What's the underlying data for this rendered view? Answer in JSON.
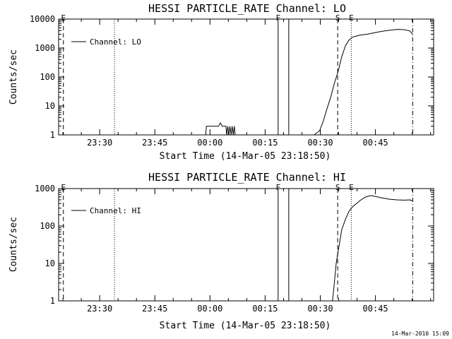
{
  "footer": {
    "timestamp": "14-Mar-2010 15:09"
  },
  "chart_data": [
    {
      "type": "line",
      "title": "HESSI PARTICLE_RATE Channel: LO",
      "xlabel": "Start Time (14-Mar-05 23:18:50)",
      "ylabel": "Counts/sec",
      "x_unit": "minutes since 14-Mar-05 23:18:50",
      "xlim": [
        0,
        102
      ],
      "ylim": [
        1,
        10000
      ],
      "yscale": "log",
      "x_ticks": [
        {
          "x": 11.17,
          "label": "23:30"
        },
        {
          "x": 26.17,
          "label": "23:45"
        },
        {
          "x": 41.17,
          "label": "00:00"
        },
        {
          "x": 56.17,
          "label": "00:15"
        },
        {
          "x": 71.17,
          "label": "00:30"
        },
        {
          "x": 86.17,
          "label": "00:45"
        }
      ],
      "y_ticks": [
        {
          "y": 1,
          "label": "1"
        },
        {
          "y": 10,
          "label": "10"
        },
        {
          "y": 100,
          "label": "100"
        },
        {
          "y": 1000,
          "label": "1000"
        },
        {
          "y": 10000,
          "label": "10000"
        }
      ],
      "legend": {
        "label": "Channel: LO",
        "position": "top-left"
      },
      "markers": [
        {
          "x": 1.3,
          "style": "dashed",
          "label": "E"
        },
        {
          "x": 15.2,
          "style": "dotted",
          "label": ""
        },
        {
          "x": 59.7,
          "style": "solid",
          "label": "F"
        },
        {
          "x": 62.6,
          "style": "solid",
          "label": ""
        },
        {
          "x": 75.9,
          "style": "dashed",
          "label": "S"
        },
        {
          "x": 79.6,
          "style": "dotted",
          "label": "E"
        },
        {
          "x": 96.3,
          "style": "dashdot",
          "label": ""
        }
      ],
      "series": [
        {
          "name": "Channel: LO",
          "segments": [
            [
              [
                40.0,
                1
              ],
              [
                40.2,
                2
              ],
              [
                43.5,
                2
              ],
              [
                44.0,
                2.6
              ],
              [
                44.5,
                2
              ],
              [
                45.5,
                2
              ],
              [
                45.7,
                1
              ],
              [
                46.0,
                2
              ],
              [
                46.3,
                1
              ],
              [
                46.6,
                2
              ],
              [
                46.9,
                1
              ],
              [
                47.2,
                2
              ],
              [
                47.5,
                1
              ],
              [
                47.8,
                2
              ],
              [
                48.0,
                1
              ]
            ],
            [
              [
                69.5,
                1
              ],
              [
                71.0,
                1.4
              ],
              [
                72.0,
                3
              ],
              [
                73.0,
                8
              ],
              [
                74.0,
                20
              ],
              [
                75.0,
                60
              ],
              [
                76.0,
                150
              ],
              [
                77.0,
                500
              ],
              [
                78.0,
                1200
              ],
              [
                79.0,
                1900
              ],
              [
                80.0,
                2400
              ],
              [
                82.0,
                2800
              ],
              [
                84.0,
                3000
              ],
              [
                86.0,
                3400
              ],
              [
                88.0,
                3800
              ],
              [
                90.0,
                4100
              ],
              [
                92.0,
                4400
              ],
              [
                94.0,
                4300
              ],
              [
                95.5,
                3900
              ],
              [
                96.3,
                3000
              ]
            ]
          ]
        }
      ]
    },
    {
      "type": "line",
      "title": "HESSI PARTICLE_RATE Channel: HI",
      "xlabel": "Start Time (14-Mar-05 23:18:50)",
      "ylabel": "Counts/sec",
      "x_unit": "minutes since 14-Mar-05 23:18:50",
      "xlim": [
        0,
        102
      ],
      "ylim": [
        1,
        1000
      ],
      "yscale": "log",
      "x_ticks": [
        {
          "x": 11.17,
          "label": "23:30"
        },
        {
          "x": 26.17,
          "label": "23:45"
        },
        {
          "x": 41.17,
          "label": "00:00"
        },
        {
          "x": 56.17,
          "label": "00:15"
        },
        {
          "x": 71.17,
          "label": "00:30"
        },
        {
          "x": 86.17,
          "label": "00:45"
        }
      ],
      "y_ticks": [
        {
          "y": 1,
          "label": "1"
        },
        {
          "y": 10,
          "label": "10"
        },
        {
          "y": 100,
          "label": "100"
        },
        {
          "y": 1000,
          "label": "1000"
        }
      ],
      "legend": {
        "label": "Channel: HI",
        "position": "top-left"
      },
      "markers": [
        {
          "x": 1.3,
          "style": "dashed",
          "label": "E"
        },
        {
          "x": 15.2,
          "style": "dotted",
          "label": ""
        },
        {
          "x": 59.7,
          "style": "solid",
          "label": "F"
        },
        {
          "x": 62.6,
          "style": "solid",
          "label": ""
        },
        {
          "x": 75.9,
          "style": "dashed",
          "label": "S"
        },
        {
          "x": 79.6,
          "style": "dotted",
          "label": "E"
        },
        {
          "x": 96.3,
          "style": "dashdot",
          "label": ""
        }
      ],
      "series": [
        {
          "name": "Channel: HI",
          "segments": [
            [
              [
                74.5,
                1
              ],
              [
                75.0,
                3
              ],
              [
                75.5,
                10
              ],
              [
                76.0,
                20
              ],
              [
                76.5,
                40
              ],
              [
                77.0,
                80
              ],
              [
                78.0,
                150
              ],
              [
                79.0,
                250
              ],
              [
                80.0,
                330
              ],
              [
                81.0,
                400
              ],
              [
                82.0,
                480
              ],
              [
                83.0,
                560
              ],
              [
                84.0,
                620
              ],
              [
                85.0,
                650
              ],
              [
                86.0,
                620
              ],
              [
                88.0,
                560
              ],
              [
                90.0,
                520
              ],
              [
                92.0,
                500
              ],
              [
                94.0,
                490
              ],
              [
                95.5,
                500
              ],
              [
                96.3,
                470
              ]
            ]
          ]
        }
      ]
    }
  ]
}
